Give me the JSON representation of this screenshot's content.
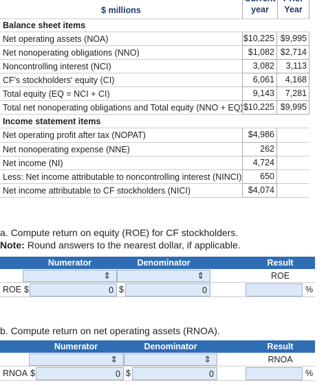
{
  "balance_table": {
    "header": {
      "units": "$ millions",
      "current": "Current year",
      "prior": "Prior Year"
    },
    "rows": [
      {
        "label": "Balance sheet items",
        "section": true
      },
      {
        "label": "Net operating assets (NOA)",
        "current": "$10,225",
        "prior": "$9,995"
      },
      {
        "label": "Net nonoperating obligations (NNO)",
        "current": "$1,082",
        "prior": "$2,714"
      },
      {
        "label": "Noncontrolling interest (NCI)",
        "current": "3,082",
        "prior": "3,113"
      },
      {
        "label": "CF's stockholders' equity (CI)",
        "current": "6,061",
        "prior": "4,168"
      },
      {
        "label": "Total equity (EQ = NCI + CI)",
        "current": "9,143",
        "prior": "7,281"
      },
      {
        "label": "Total net nonoperating obligations and Total equity (NNO + EQ) .",
        "current": "$10,225",
        "prior": "$9,995"
      },
      {
        "label": "Income statement items",
        "section": true
      },
      {
        "label": "Net operating profit after tax (NOPAT)",
        "current": "$4,986"
      },
      {
        "label": "Net nonoperating expense (NNE)",
        "current": "262"
      },
      {
        "label": "Net income (NI)",
        "current": "4,724"
      },
      {
        "label": "Less: Net income attributable to noncontrolling interest (NINCI)",
        "current": "650"
      },
      {
        "label": "Net income attributable to CF stockholders (NICI)",
        "current": "$4,074"
      }
    ]
  },
  "part_a": {
    "prompt": "a. Compute return on equity (ROE) for CF stockholders.",
    "note_label": "Note:",
    "note": " Round answers to the nearest dollar, if applicable.",
    "headers": [
      "Numerator",
      "Denominator",
      "Result"
    ],
    "result_name": "ROE",
    "row_label": "ROE",
    "currency": "$",
    "numerator": 0,
    "denominator": 0,
    "unit": "%"
  },
  "part_b": {
    "prompt": "b. Compute return on net operating assets (RNOA).",
    "headers": [
      "Numerator",
      "Denominator",
      "Result"
    ],
    "result_name": "RNOA",
    "row_label": "RNOA",
    "currency": "$",
    "numerator": 0,
    "denominator": 0,
    "unit": "%"
  }
}
